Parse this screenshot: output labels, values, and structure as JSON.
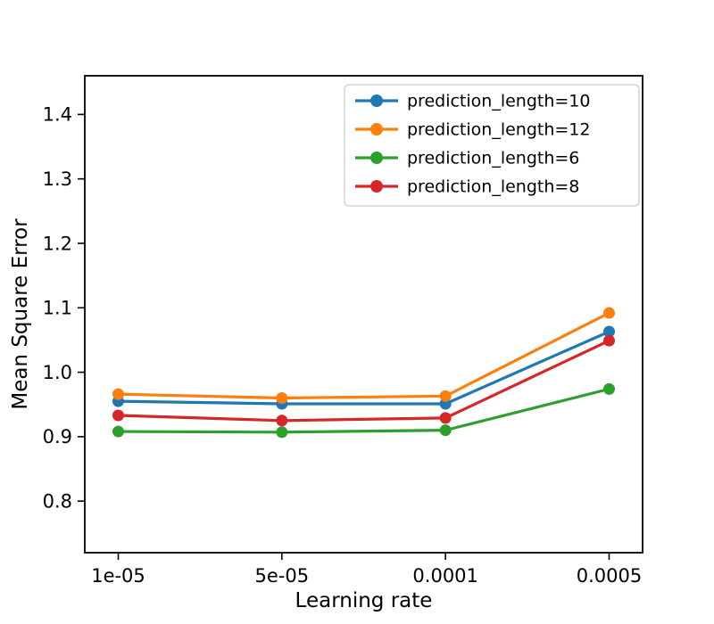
{
  "chart_data": {
    "type": "line",
    "title": "",
    "xlabel": "Learning rate",
    "ylabel": "Mean Square Error",
    "x_categories": [
      "1e-05",
      "5e-05",
      "0.0001",
      "0.0005"
    ],
    "series": [
      {
        "name": "prediction_length=10",
        "color": "#1f77b4",
        "values": [
          0.955,
          0.951,
          0.951,
          1.063
        ]
      },
      {
        "name": "prediction_length=12",
        "color": "#ff7f0e",
        "values": [
          0.966,
          0.96,
          0.963,
          1.092
        ]
      },
      {
        "name": "prediction_length=6",
        "color": "#2ca02c",
        "values": [
          0.908,
          0.907,
          0.91,
          0.974
        ]
      },
      {
        "name": "prediction_length=8",
        "color": "#d62728",
        "values": [
          0.933,
          0.925,
          0.929,
          1.049
        ]
      }
    ],
    "yticks": [
      0.8,
      0.9,
      1.0,
      1.1,
      1.2,
      1.3,
      1.4
    ],
    "ylim": [
      0.72,
      1.46
    ],
    "legend_position": "upper right",
    "grid": false,
    "marker": "circle",
    "axis_color": "#000000",
    "legend_border_color": "#cccccc",
    "legend_background": "#ffffff"
  }
}
